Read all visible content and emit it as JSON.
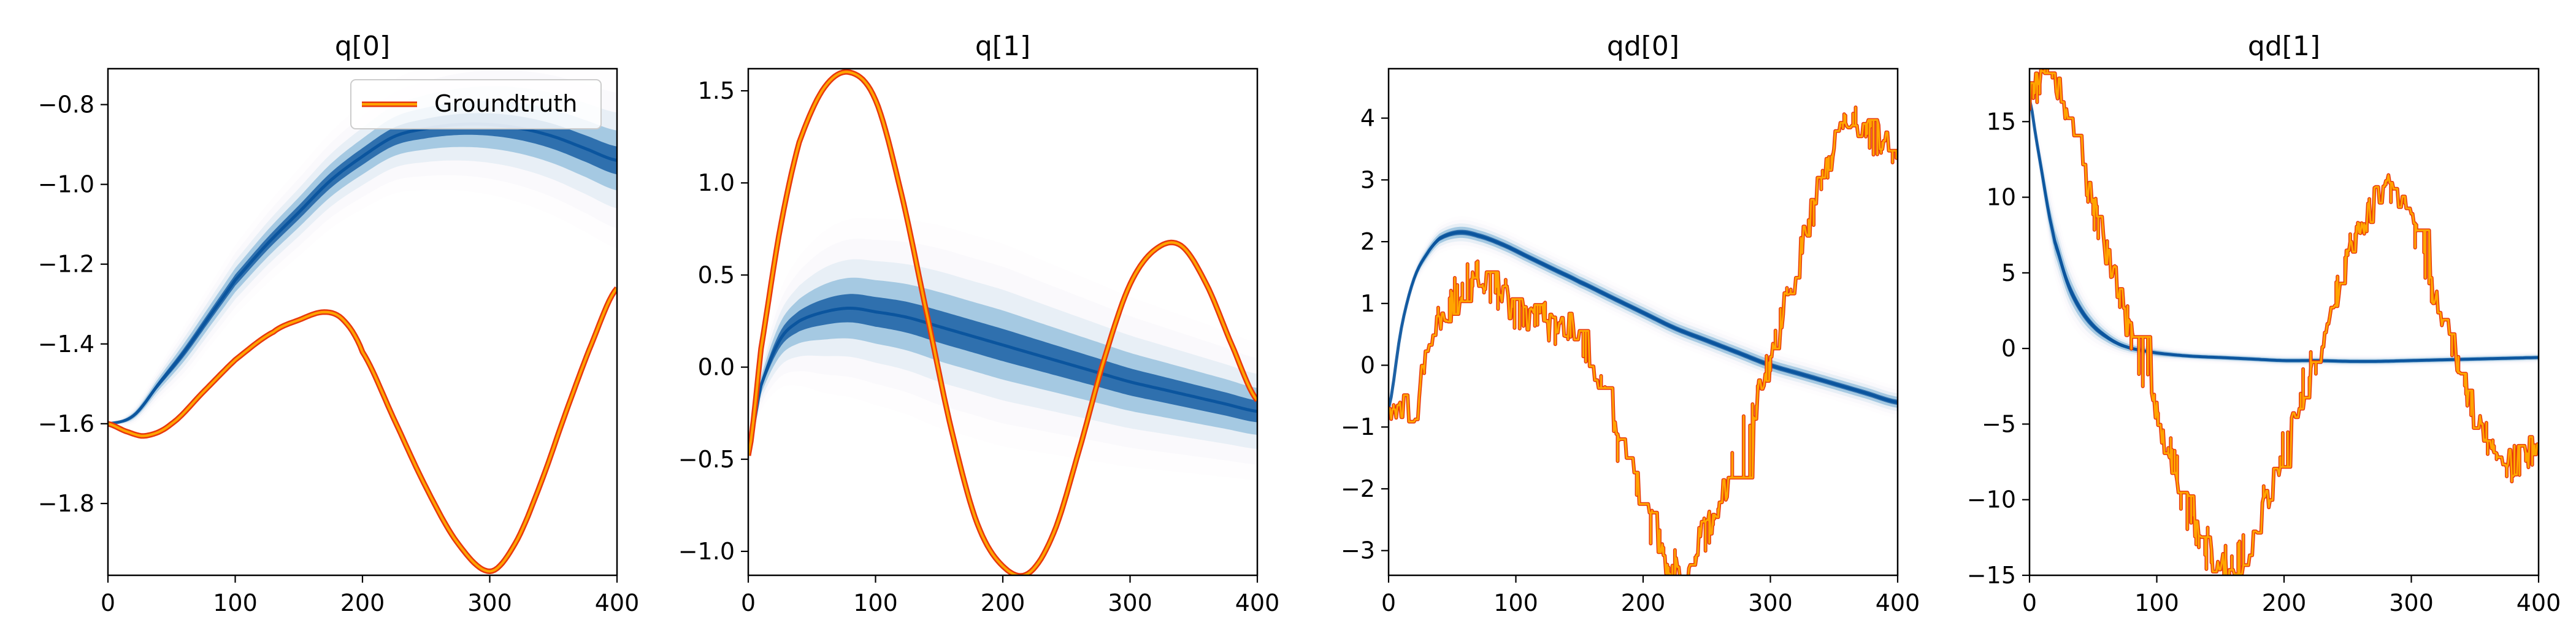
{
  "colors": {
    "band": "#08529c",
    "groundtruth_edge": "#e8380d",
    "groundtruth_fill": "#ffa500",
    "axes": "#000000"
  },
  "legend": {
    "label": "Groundtruth",
    "location": "upper right",
    "panel": 0
  },
  "chart_data": [
    {
      "type": "line",
      "title": "q[0]",
      "xlim": [
        0,
        400
      ],
      "ylim": [
        -1.98,
        -0.71
      ],
      "xticks": [
        0,
        100,
        200,
        300,
        400
      ],
      "yticks": [
        -1.8,
        -1.6,
        -1.4,
        -1.2,
        -1.0,
        -0.8
      ],
      "ytick_labels": [
        "−1.8",
        "−1.6",
        "−1.4",
        "−1.2",
        "−1.0",
        "−0.8"
      ],
      "series": [
        {
          "name": "Groundtruth",
          "noise": false,
          "x": [
            0,
            15,
            30,
            50,
            75,
            100,
            130,
            150,
            170,
            185,
            200,
            225,
            250,
            275,
            300,
            320,
            340,
            360,
            380,
            400
          ],
          "y": [
            -1.6,
            -1.62,
            -1.63,
            -1.6,
            -1.52,
            -1.44,
            -1.37,
            -1.34,
            -1.32,
            -1.34,
            -1.42,
            -1.59,
            -1.76,
            -1.9,
            -1.97,
            -1.9,
            -1.75,
            -1.57,
            -1.4,
            -1.26
          ]
        },
        {
          "band": true,
          "x": [
            0,
            20,
            40,
            60,
            80,
            100,
            125,
            150,
            175,
            200,
            225,
            250,
            275,
            300,
            325,
            350,
            375,
            400
          ],
          "y": [
            -1.6,
            -1.58,
            -1.5,
            -1.42,
            -1.33,
            -1.24,
            -1.15,
            -1.07,
            -0.99,
            -0.93,
            -0.88,
            -0.86,
            -0.85,
            -0.85,
            -0.86,
            -0.88,
            -0.91,
            -0.94
          ],
          "spread": [
            0.0,
            0.01,
            0.02,
            0.03,
            0.035,
            0.04,
            0.045,
            0.05,
            0.055,
            0.06,
            0.065,
            0.07,
            0.075,
            0.08,
            0.085,
            0.09,
            0.095,
            0.1
          ]
        }
      ]
    },
    {
      "type": "line",
      "title": "q[1]",
      "xlim": [
        0,
        400
      ],
      "ylim": [
        -1.13,
        1.62
      ],
      "xticks": [
        0,
        100,
        200,
        300,
        400
      ],
      "yticks": [
        -1.0,
        -0.5,
        0.0,
        0.5,
        1.0,
        1.5
      ],
      "ytick_labels": [
        "−1.0",
        "−0.5",
        "0.0",
        "0.5",
        "1.0",
        "1.5"
      ],
      "series": [
        {
          "name": "Groundtruth",
          "noise": false,
          "x": [
            0,
            10,
            25,
            40,
            60,
            80,
            100,
            120,
            140,
            160,
            180,
            200,
            220,
            240,
            260,
            280,
            300,
            320,
            340,
            360,
            380,
            400
          ],
          "y": [
            -0.48,
            0.1,
            0.75,
            1.22,
            1.52,
            1.6,
            1.45,
            0.95,
            0.3,
            -0.35,
            -0.85,
            -1.08,
            -1.12,
            -0.9,
            -0.45,
            0.05,
            0.45,
            0.64,
            0.66,
            0.45,
            0.12,
            -0.18
          ]
        },
        {
          "band": true,
          "x": [
            0,
            10,
            25,
            40,
            60,
            80,
            100,
            125,
            150,
            175,
            200,
            225,
            250,
            275,
            300,
            325,
            350,
            375,
            400
          ],
          "y": [
            -0.45,
            -0.1,
            0.15,
            0.25,
            0.3,
            0.32,
            0.3,
            0.27,
            0.22,
            0.17,
            0.12,
            0.07,
            0.02,
            -0.03,
            -0.08,
            -0.12,
            -0.16,
            -0.2,
            -0.24
          ],
          "spread": [
            0.0,
            0.06,
            0.12,
            0.16,
            0.2,
            0.22,
            0.23,
            0.24,
            0.25,
            0.25,
            0.25,
            0.24,
            0.23,
            0.22,
            0.21,
            0.2,
            0.19,
            0.18,
            0.17
          ]
        }
      ]
    },
    {
      "type": "line",
      "title": "qd[0]",
      "xlim": [
        0,
        400
      ],
      "ylim": [
        -3.4,
        4.8
      ],
      "xticks": [
        0,
        100,
        200,
        300,
        400
      ],
      "yticks": [
        -3,
        -2,
        -1,
        0,
        1,
        2,
        3,
        4
      ],
      "ytick_labels": [
        "−3",
        "−2",
        "−1",
        "0",
        "1",
        "2",
        "3",
        "4"
      ],
      "series": [
        {
          "name": "Groundtruth",
          "noise": true,
          "x": [
            0,
            10,
            20,
            30,
            40,
            50,
            60,
            70,
            80,
            90,
            100,
            110,
            120,
            130,
            140,
            150,
            160,
            170,
            180,
            190,
            200,
            210,
            220,
            230,
            240,
            250,
            260,
            270,
            280,
            290,
            300,
            310,
            320,
            330,
            340,
            350,
            360,
            370,
            380,
            390,
            400
          ],
          "y": [
            -0.7,
            -0.7,
            -0.7,
            0.2,
            0.7,
            1.0,
            1.4,
            1.5,
            1.3,
            1.1,
            0.9,
            0.8,
            0.7,
            0.6,
            0.7,
            0.5,
            0.0,
            -0.5,
            -1.2,
            -1.8,
            -2.3,
            -2.8,
            -3.2,
            -3.3,
            -3.0,
            -2.6,
            -2.2,
            -1.7,
            -1.1,
            -0.5,
            0.2,
            0.9,
            1.6,
            2.3,
            3.0,
            3.6,
            3.9,
            3.8,
            3.7,
            3.6,
            3.5
          ]
        },
        {
          "band": true,
          "x": [
            0,
            10,
            20,
            30,
            40,
            55,
            70,
            90,
            110,
            130,
            150,
            175,
            200,
            225,
            250,
            275,
            300,
            325,
            350,
            375,
            400
          ],
          "y": [
            -0.7,
            0.6,
            1.4,
            1.8,
            2.05,
            2.15,
            2.1,
            1.95,
            1.75,
            1.55,
            1.35,
            1.1,
            0.85,
            0.6,
            0.4,
            0.2,
            0.0,
            -0.15,
            -0.3,
            -0.45,
            -0.6
          ],
          "spread": [
            0.0,
            0.05,
            0.08,
            0.1,
            0.11,
            0.12,
            0.12,
            0.12,
            0.12,
            0.12,
            0.12,
            0.12,
            0.12,
            0.12,
            0.12,
            0.12,
            0.12,
            0.12,
            0.12,
            0.12,
            0.12
          ]
        }
      ]
    },
    {
      "type": "line",
      "title": "qd[1]",
      "xlim": [
        0,
        400
      ],
      "ylim": [
        -15,
        18.5
      ],
      "xticks": [
        0,
        100,
        200,
        300,
        400
      ],
      "yticks": [
        -15,
        -10,
        -5,
        0,
        5,
        10,
        15
      ],
      "ytick_labels": [
        "−15",
        "−10",
        "−5",
        "0",
        "5",
        "10",
        "15"
      ],
      "series": [
        {
          "name": "Groundtruth",
          "noise": true,
          "x": [
            0,
            10,
            20,
            30,
            40,
            50,
            60,
            70,
            80,
            90,
            100,
            110,
            120,
            130,
            140,
            150,
            160,
            170,
            180,
            190,
            200,
            210,
            220,
            230,
            240,
            250,
            260,
            270,
            280,
            290,
            300,
            310,
            320,
            330,
            340,
            350,
            360,
            370,
            380,
            390,
            400
          ],
          "y": [
            16.5,
            18.0,
            17.5,
            15.5,
            12.5,
            9.5,
            6.5,
            3.5,
            0.8,
            -1.8,
            -4.5,
            -7.0,
            -9.5,
            -11.8,
            -13.3,
            -14.3,
            -14.5,
            -13.5,
            -11.5,
            -9.0,
            -6.5,
            -4.0,
            -1.5,
            1.0,
            3.5,
            6.0,
            8.0,
            9.5,
            10.5,
            10.0,
            8.5,
            6.0,
            3.0,
            0.0,
            -2.5,
            -4.5,
            -6.0,
            -7.0,
            -7.5,
            -7.0,
            -6.5
          ]
        },
        {
          "band": true,
          "x": [
            0,
            5,
            10,
            15,
            20,
            30,
            40,
            50,
            60,
            70,
            80,
            100,
            125,
            150,
            175,
            200,
            225,
            250,
            275,
            300,
            325,
            350,
            375,
            400
          ],
          "y": [
            16.5,
            14.0,
            11.5,
            9.0,
            7.0,
            4.3,
            2.6,
            1.5,
            0.8,
            0.3,
            0.0,
            -0.3,
            -0.5,
            -0.6,
            -0.7,
            -0.8,
            -0.8,
            -0.85,
            -0.85,
            -0.8,
            -0.75,
            -0.7,
            -0.65,
            -0.6
          ],
          "spread": [
            0.0,
            0.4,
            0.8,
            1.0,
            1.1,
            1.0,
            0.8,
            0.6,
            0.45,
            0.35,
            0.3,
            0.25,
            0.2,
            0.2,
            0.2,
            0.2,
            0.2,
            0.2,
            0.2,
            0.2,
            0.2,
            0.2,
            0.2,
            0.2
          ]
        }
      ]
    }
  ]
}
